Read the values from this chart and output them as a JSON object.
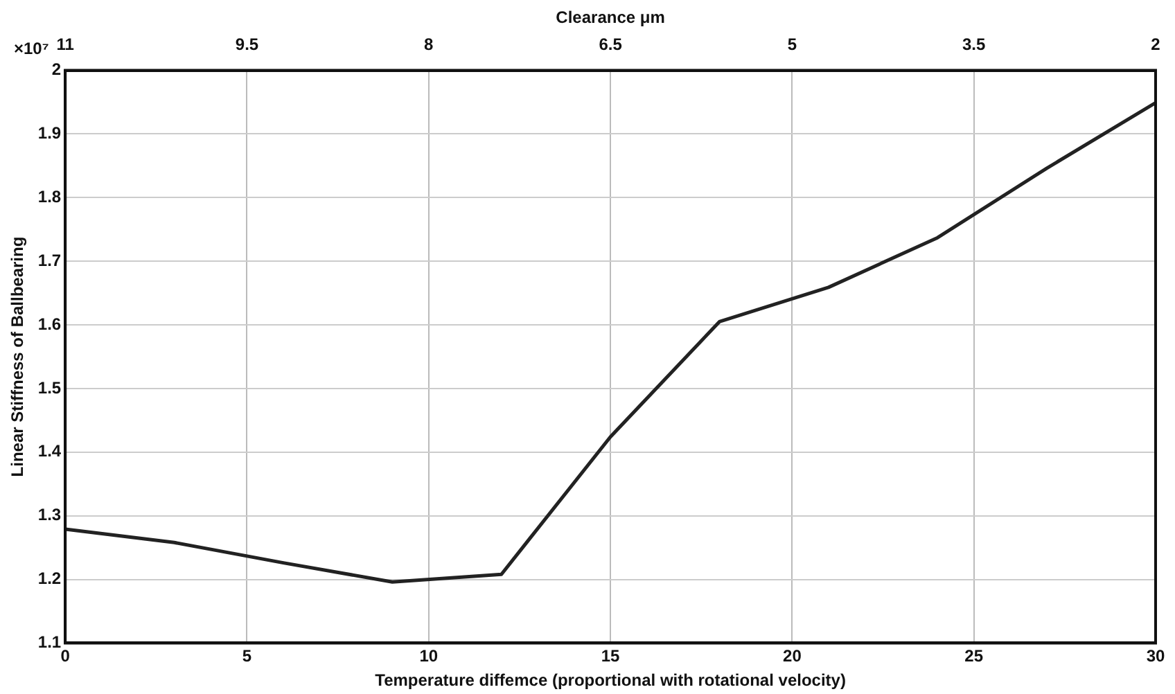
{
  "chart_data": {
    "type": "line",
    "xlabel": "Temperature diffemce (proportional with rotational velocity)",
    "ylabel": "Linear Stiffness of Ballbearing",
    "x2label": "Clearance μm",
    "annotations": [
      "×10⁷"
    ],
    "x": [
      0,
      3,
      6,
      9,
      12,
      15,
      18,
      21,
      24,
      27,
      30
    ],
    "series": [
      {
        "color": "#222222",
        "values": [
          1.279,
          1.258,
          1.226,
          1.196,
          1.208,
          1.424,
          1.605,
          1.659,
          1.737,
          1.846,
          1.949
        ]
      }
    ],
    "xlim": [
      0,
      30
    ],
    "xticks": [
      0,
      5,
      10,
      15,
      20,
      25,
      30
    ],
    "x2lim": [
      11,
      2
    ],
    "x2ticks": [
      11,
      9.5,
      8,
      6.5,
      5,
      3.5,
      2
    ],
    "ylim": [
      1.1,
      2
    ],
    "yticks": [
      1.1,
      1.2,
      1.3,
      1.4,
      1.5,
      1.6,
      1.7,
      1.8,
      1.9,
      2
    ],
    "grid": true,
    "legend": false,
    "marker": "none",
    "line_style": "solid"
  }
}
